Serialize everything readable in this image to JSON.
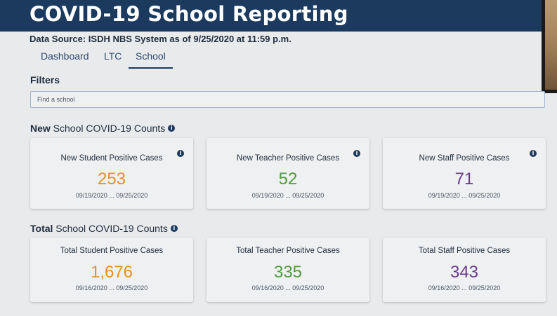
{
  "header": {
    "title": "COVID-19 School Reporting"
  },
  "data_source": "Data Source: ISDH NBS System as of 9/25/2020 at 11:59 p.m.",
  "tabs": [
    {
      "label": "Dashboard",
      "active": false
    },
    {
      "label": "LTC",
      "active": false
    },
    {
      "label": "School",
      "active": true
    }
  ],
  "filters": {
    "label": "Filters",
    "search_placeholder": "Find a school",
    "search_value": ""
  },
  "new_section": {
    "title_bold": "New",
    "title_rest": " School COVID-19 Counts",
    "cards": [
      {
        "label": "New Student Positive Cases",
        "value": "253",
        "dates": "09/19/2020 ... 09/25/2020",
        "color": "#e89020"
      },
      {
        "label": "New Teacher Positive Cases",
        "value": "52",
        "dates": "09/19/2020 ... 09/25/2020",
        "color": "#4f9b3c"
      },
      {
        "label": "New Staff Positive Cases",
        "value": "71",
        "dates": "09/19/2020 ... 09/25/2020",
        "color": "#6a3a8c"
      }
    ]
  },
  "total_section": {
    "title_bold": "Total",
    "title_rest": " School COVID-19 Counts",
    "cards": [
      {
        "label": "Total Student Positive Cases",
        "value": "1,676",
        "dates": "09/16/2020 ... 09/25/2020",
        "color": "#e89020"
      },
      {
        "label": "Total Teacher Positive Cases",
        "value": "335",
        "dates": "09/16/2020 ... 09/25/2020",
        "color": "#4f9b3c"
      },
      {
        "label": "Total Staff Positive Cases",
        "value": "343",
        "dates": "09/16/2020 ... 09/25/2020",
        "color": "#6a3a8c"
      }
    ]
  },
  "icons": {
    "info": "info-icon",
    "info_glyph": "i"
  },
  "colors": {
    "header_bg": "#1c3a5e",
    "student": "#e89020",
    "teacher": "#4f9b3c",
    "staff": "#6a3a8c"
  }
}
